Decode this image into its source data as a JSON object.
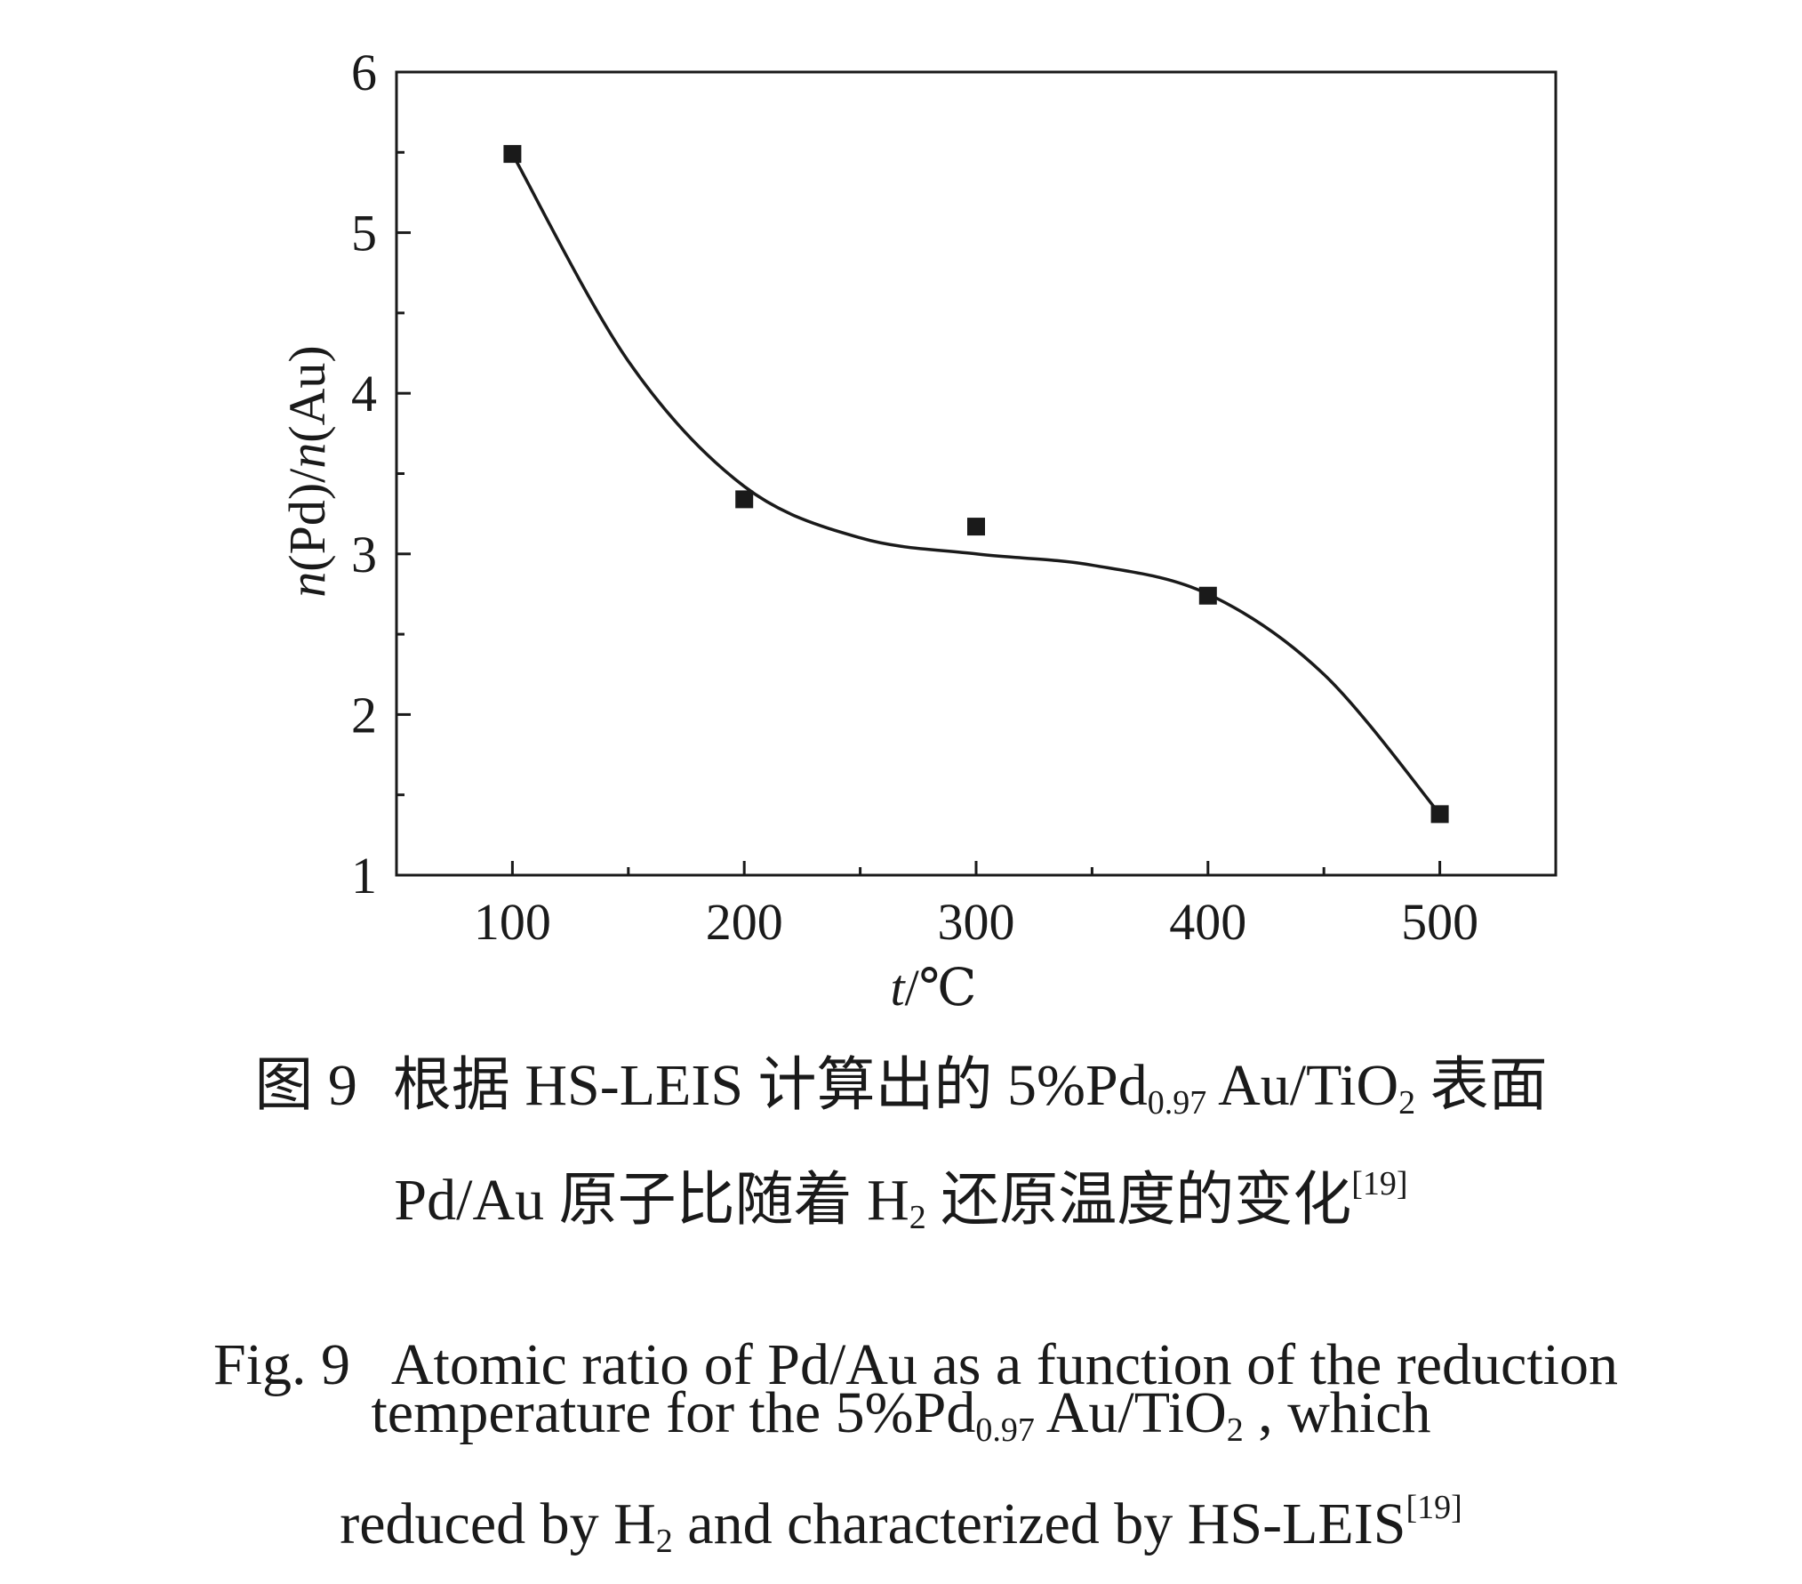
{
  "chart_data": {
    "type": "scatter",
    "xlabel_italic": "t",
    "xlabel_unit": "/℃",
    "ylabel": "n(Pd)/n(Au)",
    "xlim": [
      50,
      550
    ],
    "ylim": [
      1,
      6
    ],
    "x_ticks": [
      "100",
      "200",
      "300",
      "400",
      "500"
    ],
    "y_ticks": [
      "1",
      "2",
      "3",
      "4",
      "5",
      "6"
    ],
    "series": [
      {
        "x": [
          100,
          200,
          300,
          400,
          500
        ],
        "y": [
          5.49,
          3.34,
          3.17,
          2.74,
          1.38
        ]
      }
    ],
    "fit_curve": {
      "x": [
        100,
        150,
        200,
        250,
        300,
        350,
        400,
        450,
        500
      ],
      "y": [
        5.49,
        4.2,
        3.42,
        3.1,
        3.0,
        2.93,
        2.75,
        2.25,
        1.38
      ]
    },
    "grid": false,
    "legend": "none"
  },
  "caption": {
    "cn_line1_label": "图 9",
    "cn_line1_text": "根据 HS-LEIS 计算出的 5%Pd",
    "cn_line1_sub": "0.97",
    "cn_line1_mid": " Au/TiO",
    "cn_line1_sub2": "2",
    "cn_line1_end": " 表面",
    "cn_line2_text": "Pd/Au 原子比随着 H",
    "cn_line2_sub": "2",
    "cn_line2_end": " 还原温度的变化",
    "cn_line2_ref": "[19]",
    "en_line1": "Fig. 9   Atomic ratio of Pd/Au as a function of the reduction",
    "en_line2_a": "temperature for the 5%Pd",
    "en_line2_sub": "0.97",
    "en_line2_b": " Au/TiO",
    "en_line2_sub2": "2",
    "en_line2_c": " , which",
    "en_line3_a": "reduced by H",
    "en_line3_sub": "2",
    "en_line3_b": " and characterized by HS-LEIS",
    "en_line3_ref": "[19]"
  }
}
